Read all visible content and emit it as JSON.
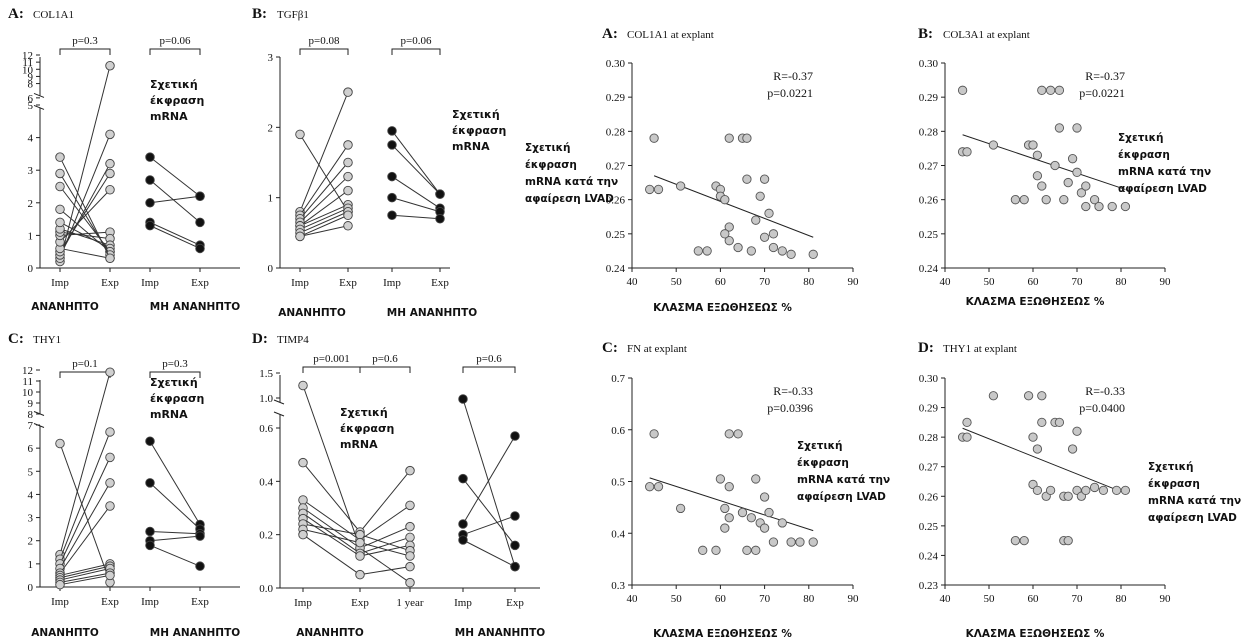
{
  "charts_left": [
    {
      "label": "A:",
      "title": "COL1A1",
      "ylabel": "Σχετική έκφραση mRNA",
      "yticks": [
        "0",
        "1",
        "2",
        "3",
        "4",
        "5",
        "6",
        "7",
        "8",
        "9",
        "10",
        "11",
        "12"
      ],
      "groups": [
        {
          "name": "ΑΝΑΝΗΠΤΟ",
          "x_labels": [
            "Imp",
            "Exp"
          ],
          "pvalue": "p=0.3",
          "color": "#d0d0d0",
          "pairs": [
            [
              0.2,
              10.5
            ],
            [
              0.3,
              4.1
            ],
            [
              0.4,
              3.2
            ],
            [
              0.5,
              2.9
            ],
            [
              0.6,
              0.3
            ],
            [
              0.8,
              2.4
            ],
            [
              1.0,
              1.1
            ],
            [
              1.1,
              0.9
            ],
            [
              1.2,
              0.7
            ],
            [
              1.4,
              0.6
            ],
            [
              1.8,
              0.5
            ],
            [
              2.5,
              0.5
            ],
            [
              2.9,
              0.4
            ],
            [
              3.4,
              0.3
            ]
          ]
        },
        {
          "name": "ΜΗ ΑΝΑΝΗΠΤΟ",
          "x_labels": [
            "Imp",
            "Exp"
          ],
          "pvalue": "p=0.06",
          "color": "#111111",
          "pairs": [
            [
              3.4,
              2.2
            ],
            [
              2.7,
              1.4
            ],
            [
              2.0,
              2.2
            ],
            [
              1.4,
              0.7
            ],
            [
              1.3,
              0.6
            ]
          ]
        }
      ]
    },
    {
      "label": "B:",
      "title": "TGFβ1",
      "ylabel": "Σχετική έκφραση mRNA",
      "yticks": [
        "0",
        "1",
        "2",
        "3"
      ],
      "groups": [
        {
          "name": "ΑΝΑΝΗΠΤΟ",
          "x_labels": [
            "Imp",
            "Exp"
          ],
          "pvalue": "p=0.08",
          "color": "#d0d0d0",
          "pairs": [
            [
              1.9,
              0.8
            ],
            [
              0.8,
              2.5
            ],
            [
              0.75,
              1.75
            ],
            [
              0.7,
              1.5
            ],
            [
              0.65,
              1.3
            ],
            [
              0.6,
              1.1
            ],
            [
              0.6,
              0.9
            ],
            [
              0.55,
              0.85
            ],
            [
              0.5,
              0.8
            ],
            [
              0.45,
              0.75
            ],
            [
              0.45,
              0.6
            ]
          ]
        },
        {
          "name": "ΜΗ ΑΝΑΝΗΠΤΟ",
          "x_labels": [
            "Imp",
            "Exp"
          ],
          "pvalue": "p=0.06",
          "color": "#111111",
          "pairs": [
            [
              1.95,
              1.05
            ],
            [
              1.75,
              1.05
            ],
            [
              1.3,
              0.85
            ],
            [
              1.0,
              0.8
            ],
            [
              0.75,
              0.7
            ]
          ]
        }
      ]
    },
    {
      "label": "C:",
      "title": "THY1",
      "ylabel": "Σχετική έκφραση mRNA",
      "yticks": [
        "0",
        "1",
        "2",
        "3",
        "4",
        "5",
        "6",
        "7",
        "8",
        "9",
        "10",
        "11",
        "12"
      ],
      "groups": [
        {
          "name": "ΑΝΑΝΗΠΤΟ",
          "x_labels": [
            "Imp",
            "Exp"
          ],
          "pvalue": "p=0.1",
          "color": "#d0d0d0",
          "pairs": [
            [
              6.2,
              0.2
            ],
            [
              1.4,
              11.8
            ],
            [
              1.2,
              6.7
            ],
            [
              1.0,
              5.6
            ],
            [
              0.8,
              4.5
            ],
            [
              0.6,
              3.5
            ],
            [
              0.5,
              1.0
            ],
            [
              0.4,
              0.9
            ],
            [
              0.3,
              0.8
            ],
            [
              0.2,
              0.6
            ],
            [
              0.1,
              0.5
            ]
          ]
        },
        {
          "name": "ΜΗ ΑΝΑΝΗΠΤΟ",
          "x_labels": [
            "Imp",
            "Exp"
          ],
          "pvalue": "p=0.3",
          "color": "#111111",
          "pairs": [
            [
              6.3,
              2.7
            ],
            [
              4.5,
              2.5
            ],
            [
              2.4,
              2.3
            ],
            [
              2.0,
              2.2
            ],
            [
              1.8,
              0.9
            ]
          ]
        }
      ]
    },
    {
      "label": "D:",
      "title": "TIMP4",
      "ylabel": "Σχετική έκφραση mRNA",
      "yticks": [
        "0.0",
        "0.2",
        "0.4",
        "0.6",
        "1.0",
        "1.5"
      ],
      "groups": [
        {
          "name": "ΑΝΑΝΗΠΤΟ",
          "x_labels": [
            "Imp",
            "Exp",
            "1 year"
          ],
          "pvalues": [
            "p=0.001",
            "p=0.6"
          ],
          "color": "#d0d0d0",
          "triples": [
            [
              1.25,
              0.15,
              0.02
            ],
            [
              0.47,
              0.21,
              0.44
            ],
            [
              0.33,
              0.18,
              0.31
            ],
            [
              0.3,
              0.15,
              0.23
            ],
            [
              0.28,
              0.13,
              0.19
            ],
            [
              0.26,
              0.12,
              0.16
            ],
            [
              0.24,
              0.2,
              0.14
            ],
            [
              0.22,
              0.17,
              0.12
            ],
            [
              0.2,
              0.05,
              0.08
            ]
          ]
        },
        {
          "name": "ΜΗ ΑΝΑΝΗΠΤΟ",
          "x_labels": [
            "Imp",
            "Exp"
          ],
          "pvalue": "p=0.6",
          "color": "#111111",
          "pairs": [
            [
              0.98,
              0.08
            ],
            [
              0.41,
              0.16
            ],
            [
              0.24,
              0.57
            ],
            [
              0.2,
              0.27
            ],
            [
              0.18,
              0.08
            ]
          ]
        }
      ]
    }
  ],
  "charts_right": [
    {
      "label": "A:",
      "title": "COL1A1 at explant",
      "ylabel": "Σχετική έκφραση mRNA κατά την αφαίρεση LVAD",
      "xlabel": "ΚΛΑΣΜΑ ΕΞΩΘΗΣΕΩΣ %",
      "r": "R=-0.37",
      "p": "p=0.0221",
      "xlim": [
        40,
        90
      ],
      "ylim": [
        0.24,
        0.3
      ],
      "xticks": [
        "40",
        "50",
        "60",
        "70",
        "80",
        "90"
      ],
      "yticks": [
        "0.24",
        "0.25",
        "0.26",
        "0.27",
        "0.28",
        "0.29",
        "0.30"
      ],
      "line": [
        [
          45,
          0.267
        ],
        [
          81,
          0.249
        ]
      ],
      "points": [
        [
          45,
          0.278
        ],
        [
          44,
          0.263
        ],
        [
          46,
          0.263
        ],
        [
          51,
          0.264
        ],
        [
          55,
          0.245
        ],
        [
          57,
          0.245
        ],
        [
          59,
          0.264
        ],
        [
          60,
          0.263
        ],
        [
          60,
          0.261
        ],
        [
          61,
          0.26
        ],
        [
          62,
          0.278
        ],
        [
          62,
          0.252
        ],
        [
          62,
          0.248
        ],
        [
          61,
          0.25
        ],
        [
          64,
          0.246
        ],
        [
          65,
          0.278
        ],
        [
          66,
          0.278
        ],
        [
          66,
          0.266
        ],
        [
          67,
          0.245
        ],
        [
          68,
          0.254
        ],
        [
          69,
          0.261
        ],
        [
          70,
          0.266
        ],
        [
          70,
          0.249
        ],
        [
          71,
          0.256
        ],
        [
          72,
          0.25
        ],
        [
          72,
          0.246
        ],
        [
          74,
          0.245
        ],
        [
          76,
          0.244
        ],
        [
          81,
          0.244
        ]
      ]
    },
    {
      "label": "B:",
      "title": "COL3A1 at explant",
      "ylabel": "Σχετική έκφραση mRNA κατά την αφαίρεση LVAD",
      "xlabel": "ΚΛΑΣΜΑ ΕΞΩΘΗΣΕΩΣ %",
      "r": "R=-0.37",
      "p": "p=0.0221",
      "xlim": [
        40,
        90
      ],
      "ylim": [
        0.24,
        0.3
      ],
      "xticks": [
        "40",
        "50",
        "60",
        "70",
        "80",
        "90"
      ],
      "yticks": [
        "0.24",
        "0.25",
        "0.26",
        "0.27",
        "0.28",
        "0.29",
        "0.30"
      ],
      "line": [
        [
          44,
          0.279
        ],
        [
          81,
          0.263
        ]
      ],
      "points": [
        [
          44,
          0.292
        ],
        [
          44,
          0.274
        ],
        [
          45,
          0.274
        ],
        [
          51,
          0.276
        ],
        [
          56,
          0.26
        ],
        [
          58,
          0.26
        ],
        [
          59,
          0.276
        ],
        [
          60,
          0.276
        ],
        [
          61,
          0.273
        ],
        [
          61,
          0.267
        ],
        [
          62,
          0.292
        ],
        [
          62,
          0.264
        ],
        [
          63,
          0.26
        ],
        [
          64,
          0.292
        ],
        [
          65,
          0.27
        ],
        [
          66,
          0.281
        ],
        [
          66,
          0.292
        ],
        [
          67,
          0.26
        ],
        [
          68,
          0.265
        ],
        [
          69,
          0.272
        ],
        [
          70,
          0.281
        ],
        [
          70,
          0.268
        ],
        [
          71,
          0.262
        ],
        [
          72,
          0.258
        ],
        [
          72,
          0.264
        ],
        [
          74,
          0.26
        ],
        [
          75,
          0.258
        ],
        [
          78,
          0.258
        ],
        [
          81,
          0.258
        ]
      ]
    },
    {
      "label": "C:",
      "title": "FN at explant",
      "ylabel": "Σχετική έκφραση mRNA κατά την αφαίρεση LVAD",
      "xlabel": "ΚΛΑΣΜΑ ΕΞΩΘΗΣΕΩΣ %",
      "r": "R=-0.33",
      "p": "p=0.0396",
      "xlim": [
        40,
        90
      ],
      "ylim": [
        0.3,
        0.7
      ],
      "xticks": [
        "40",
        "50",
        "60",
        "70",
        "80",
        "90"
      ],
      "yticks": [
        "0.3",
        "0.4",
        "0.5",
        "0.6",
        "0.7"
      ],
      "line": [
        [
          44,
          0.507
        ],
        [
          81,
          0.405
        ]
      ],
      "points": [
        [
          45,
          0.592
        ],
        [
          44,
          0.49
        ],
        [
          46,
          0.49
        ],
        [
          51,
          0.448
        ],
        [
          56,
          0.367
        ],
        [
          59,
          0.367
        ],
        [
          60,
          0.505
        ],
        [
          61,
          0.448
        ],
        [
          61,
          0.41
        ],
        [
          62,
          0.592
        ],
        [
          62,
          0.49
        ],
        [
          62,
          0.43
        ],
        [
          64,
          0.592
        ],
        [
          65,
          0.44
        ],
        [
          66,
          0.367
        ],
        [
          67,
          0.43
        ],
        [
          68,
          0.505
        ],
        [
          68,
          0.367
        ],
        [
          69,
          0.42
        ],
        [
          70,
          0.47
        ],
        [
          70,
          0.41
        ],
        [
          71,
          0.44
        ],
        [
          72,
          0.383
        ],
        [
          74,
          0.42
        ],
        [
          76,
          0.383
        ],
        [
          78,
          0.383
        ],
        [
          81,
          0.383
        ]
      ]
    },
    {
      "label": "D:",
      "title": "THY1 at explant",
      "ylabel": "Σχετική έκφραση mRNA κατά την αφαίρεση LVAD",
      "xlabel": "ΚΛΑΣΜΑ ΕΞΩΘΗΣΕΩΣ %",
      "r": "R=-0.33",
      "p": "p=0.0400",
      "xlim": [
        40,
        90
      ],
      "ylim": [
        0.23,
        0.3
      ],
      "xticks": [
        "40",
        "50",
        "60",
        "70",
        "80",
        "90"
      ],
      "yticks": [
        "0.23",
        "0.24",
        "0.25",
        "0.26",
        "0.27",
        "0.28",
        "0.29",
        "0.30"
      ],
      "line": [
        [
          44,
          0.283
        ],
        [
          81,
          0.261
        ]
      ],
      "points": [
        [
          45,
          0.285
        ],
        [
          44,
          0.28
        ],
        [
          45,
          0.28
        ],
        [
          51,
          0.294
        ],
        [
          56,
          0.245
        ],
        [
          58,
          0.245
        ],
        [
          59,
          0.294
        ],
        [
          60,
          0.28
        ],
        [
          60,
          0.264
        ],
        [
          61,
          0.276
        ],
        [
          61,
          0.262
        ],
        [
          62,
          0.294
        ],
        [
          62,
          0.285
        ],
        [
          63,
          0.26
        ],
        [
          64,
          0.262
        ],
        [
          65,
          0.285
        ],
        [
          66,
          0.285
        ],
        [
          67,
          0.26
        ],
        [
          67,
          0.245
        ],
        [
          68,
          0.26
        ],
        [
          68,
          0.245
        ],
        [
          69,
          0.276
        ],
        [
          70,
          0.282
        ],
        [
          70,
          0.262
        ],
        [
          71,
          0.26
        ],
        [
          72,
          0.262
        ],
        [
          74,
          0.263
        ],
        [
          76,
          0.262
        ],
        [
          79,
          0.262
        ],
        [
          81,
          0.262
        ]
      ]
    }
  ]
}
